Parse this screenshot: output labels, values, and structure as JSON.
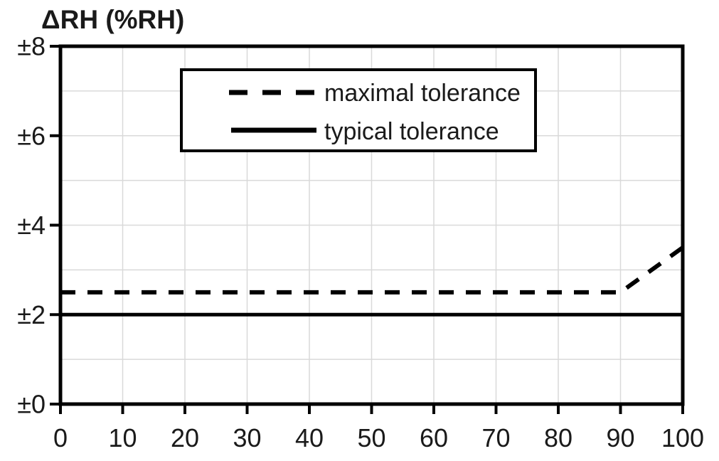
{
  "figure": {
    "title": "ΔRH (%RH)"
  },
  "colors": {
    "background": "#ffffff",
    "line": "#000000",
    "gridline": "#d9d9d9",
    "text": "#1a1a1a"
  },
  "legend": {
    "items": [
      {
        "label": "maximal tolerance",
        "style": "dashed"
      },
      {
        "label": "typical tolerance",
        "style": "solid"
      }
    ]
  },
  "chart_data": {
    "type": "line",
    "title": "ΔRH (%RH)",
    "xlabel": "",
    "ylabel": "ΔRH (%RH)",
    "xlim": [
      0,
      100
    ],
    "ylim": [
      0,
      8
    ],
    "x_ticks": [
      0,
      10,
      20,
      30,
      40,
      50,
      60,
      70,
      80,
      90,
      100
    ],
    "y_ticks": [
      0,
      2,
      4,
      6,
      8
    ],
    "y_tick_labels": [
      "±0",
      "±2",
      "±4",
      "±6",
      "±8"
    ],
    "x_gridline_step": 10,
    "y_gridline_step": 1,
    "grid": true,
    "legend_position": "top-center-inside",
    "series": [
      {
        "name": "maximal tolerance",
        "line_style": "dashed",
        "color": "#000000",
        "points": [
          [
            0,
            2.5
          ],
          [
            90,
            2.5
          ],
          [
            100,
            3.5
          ]
        ]
      },
      {
        "name": "typical tolerance",
        "line_style": "solid",
        "color": "#000000",
        "points": [
          [
            0,
            2.0
          ],
          [
            100,
            2.0
          ]
        ]
      }
    ]
  }
}
